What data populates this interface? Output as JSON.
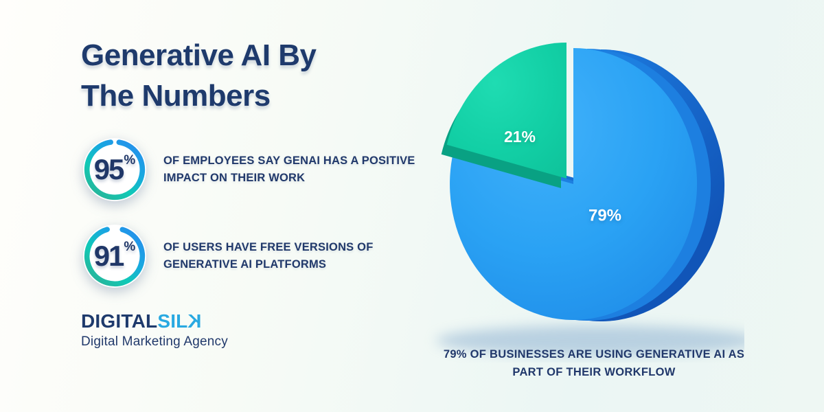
{
  "header": {
    "title_lines": [
      "Generative AI By",
      "The Numbers"
    ]
  },
  "stats": [
    {
      "value": "95",
      "unit": "%",
      "percent": 95,
      "description": "OF EMPLOYEES SAY GENAI HAS A POSITIVE IMPACT ON THEIR WORK"
    },
    {
      "value": "91",
      "unit": "%",
      "percent": 91,
      "description": "OF USERS HAVE FREE VERSIONS OF GENERATIVE AI PLATFORMS"
    }
  ],
  "stat_ring": {
    "gradient": [
      "#26b69c",
      "#10c9b6",
      "#18a8e0",
      "#2492ea"
    ]
  },
  "brand": {
    "name_primary": "DIGITAL",
    "name_secondary": "SILK",
    "tagline": "Digital Marketing Agency",
    "primary_color": "#1e3a6c",
    "secondary_color": "#29a9e1"
  },
  "chart_data": {
    "type": "pie",
    "slices": [
      {
        "label": "79%",
        "value": 79,
        "color": "#2aa2f4",
        "color_light": "#41b1fa",
        "side_color_inner": "#1d7ce0",
        "side_color_outer": "#1155b8"
      },
      {
        "label": "21%",
        "value": 21,
        "color": "#12cfa5",
        "color_light": "#1fdcb2",
        "side_color": "#09a183"
      }
    ],
    "caption": "79% OF BUSINESSES ARE USING GENERATIVE AI AS PART OF THEIR WORKFLOW",
    "label_color": "#ffffff",
    "layout": {
      "style": "3d-exploded",
      "start_angle_deg": 90,
      "large_slice_direction": "clockwise",
      "exploded_slice_label": "21%",
      "legend": false
    }
  },
  "colors": {
    "text_navy": "#1f3a6b",
    "background_tint": "#eaf6f5"
  }
}
